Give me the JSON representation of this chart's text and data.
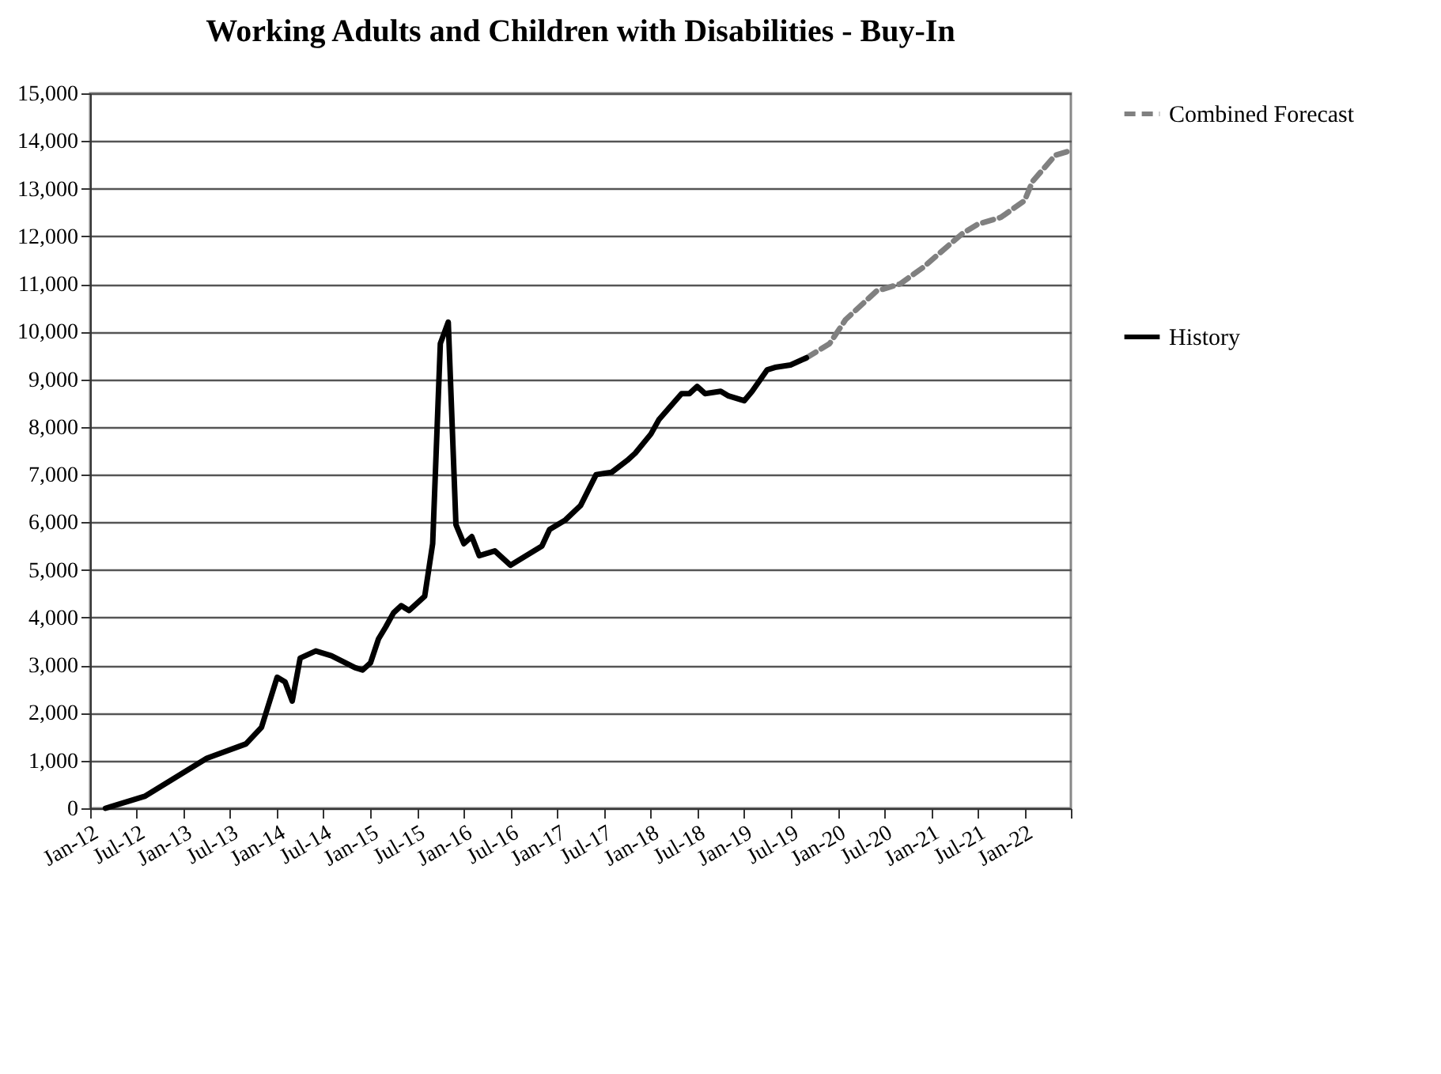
{
  "chart_data": {
    "type": "line",
    "title": "Working Adults and Children with Disabilities - Buy-In",
    "xlim": [
      "2012-01",
      "2022-07"
    ],
    "xticks": [
      {
        "value": "2012-01",
        "label": "Jan-12"
      },
      {
        "value": "2012-07",
        "label": "Jul-12"
      },
      {
        "value": "2013-01",
        "label": "Jan-13"
      },
      {
        "value": "2013-07",
        "label": "Jul-13"
      },
      {
        "value": "2014-01",
        "label": "Jan-14"
      },
      {
        "value": "2014-07",
        "label": "Jul-14"
      },
      {
        "value": "2015-01",
        "label": "Jan-15"
      },
      {
        "value": "2015-07",
        "label": "Jul-15"
      },
      {
        "value": "2016-01",
        "label": "Jan-16"
      },
      {
        "value": "2016-07",
        "label": "Jul-16"
      },
      {
        "value": "2017-01",
        "label": "Jan-17"
      },
      {
        "value": "2017-07",
        "label": "Jul-17"
      },
      {
        "value": "2018-01",
        "label": "Jan-18"
      },
      {
        "value": "2018-07",
        "label": "Jul-18"
      },
      {
        "value": "2019-01",
        "label": "Jan-19"
      },
      {
        "value": "2019-07",
        "label": "Jul-19"
      },
      {
        "value": "2020-01",
        "label": "Jan-20"
      },
      {
        "value": "2020-07",
        "label": "Jul-20"
      },
      {
        "value": "2021-01",
        "label": "Jan-21"
      },
      {
        "value": "2021-07",
        "label": "Jul-21"
      },
      {
        "value": "2022-01",
        "label": "Jan-22"
      },
      {
        "value": "2022-07",
        "label": null
      }
    ],
    "ylim": [
      0,
      15000
    ],
    "yticks": [
      {
        "value": 0,
        "label": "0"
      },
      {
        "value": 1000,
        "label": "1,000"
      },
      {
        "value": 2000,
        "label": "2,000"
      },
      {
        "value": 3000,
        "label": "3,000"
      },
      {
        "value": 4000,
        "label": "4,000"
      },
      {
        "value": 5000,
        "label": "5,000"
      },
      {
        "value": 6000,
        "label": "6,000"
      },
      {
        "value": 7000,
        "label": "7,000"
      },
      {
        "value": 8000,
        "label": "8,000"
      },
      {
        "value": 9000,
        "label": "9,000"
      },
      {
        "value": 10000,
        "label": "10,000"
      },
      {
        "value": 11000,
        "label": "11,000"
      },
      {
        "value": 12000,
        "label": "12,000"
      },
      {
        "value": 13000,
        "label": "13,000"
      },
      {
        "value": 14000,
        "label": "14,000"
      },
      {
        "value": 15000,
        "label": "15,000"
      }
    ],
    "grid": "y",
    "legend": "right",
    "marker": "none",
    "series": [
      {
        "name": "Combined Forecast",
        "color": "#808080",
        "line_style": "dashed",
        "x": [
          "2019-09",
          "2019-12",
          "2020-02",
          "2020-06",
          "2020-09",
          "2020-12",
          "2021-05",
          "2021-07",
          "2021-10",
          "2022-01",
          "2022-02",
          "2022-05",
          "2022-07"
        ],
        "values": [
          9450,
          9750,
          10250,
          10850,
          11000,
          11350,
          12050,
          12250,
          12400,
          12750,
          13150,
          13700,
          13800
        ]
      },
      {
        "name": "History",
        "color": "#000000",
        "line_style": "solid",
        "x": [
          "2012-03",
          "2012-08",
          "2013-04",
          "2013-09",
          "2013-11",
          "2014-01",
          "2014-02",
          "2014-03",
          "2014-04",
          "2014-06",
          "2014-08",
          "2014-11",
          "2014-12",
          "2015-01",
          "2015-02",
          "2015-03",
          "2015-04",
          "2015-05",
          "2015-06",
          "2015-08",
          "2015-09",
          "2015-10",
          "2015-11",
          "2015-12",
          "2016-01",
          "2016-02",
          "2016-03",
          "2016-05",
          "2016-07",
          "2016-09",
          "2016-11",
          "2016-12",
          "2017-02",
          "2017-04",
          "2017-06",
          "2017-08",
          "2017-10",
          "2017-11",
          "2018-01",
          "2018-02",
          "2018-05",
          "2018-06",
          "2018-07",
          "2018-08",
          "2018-10",
          "2018-11",
          "2019-01",
          "2019-02",
          "2019-04",
          "2019-05",
          "2019-07",
          "2019-09"
        ],
        "values": [
          0,
          250,
          1050,
          1350,
          1700,
          2750,
          2650,
          2250,
          3150,
          3300,
          3200,
          2950,
          2900,
          3050,
          3550,
          3800,
          4100,
          4250,
          4150,
          4450,
          5550,
          9750,
          10200,
          5950,
          5550,
          5700,
          5300,
          5400,
          5100,
          5300,
          5500,
          5850,
          6050,
          6350,
          7000,
          7050,
          7300,
          7450,
          7850,
          8150,
          8700,
          8700,
          8850,
          8700,
          8750,
          8650,
          8550,
          8750,
          9200,
          9250,
          9300,
          9450
        ]
      }
    ]
  }
}
